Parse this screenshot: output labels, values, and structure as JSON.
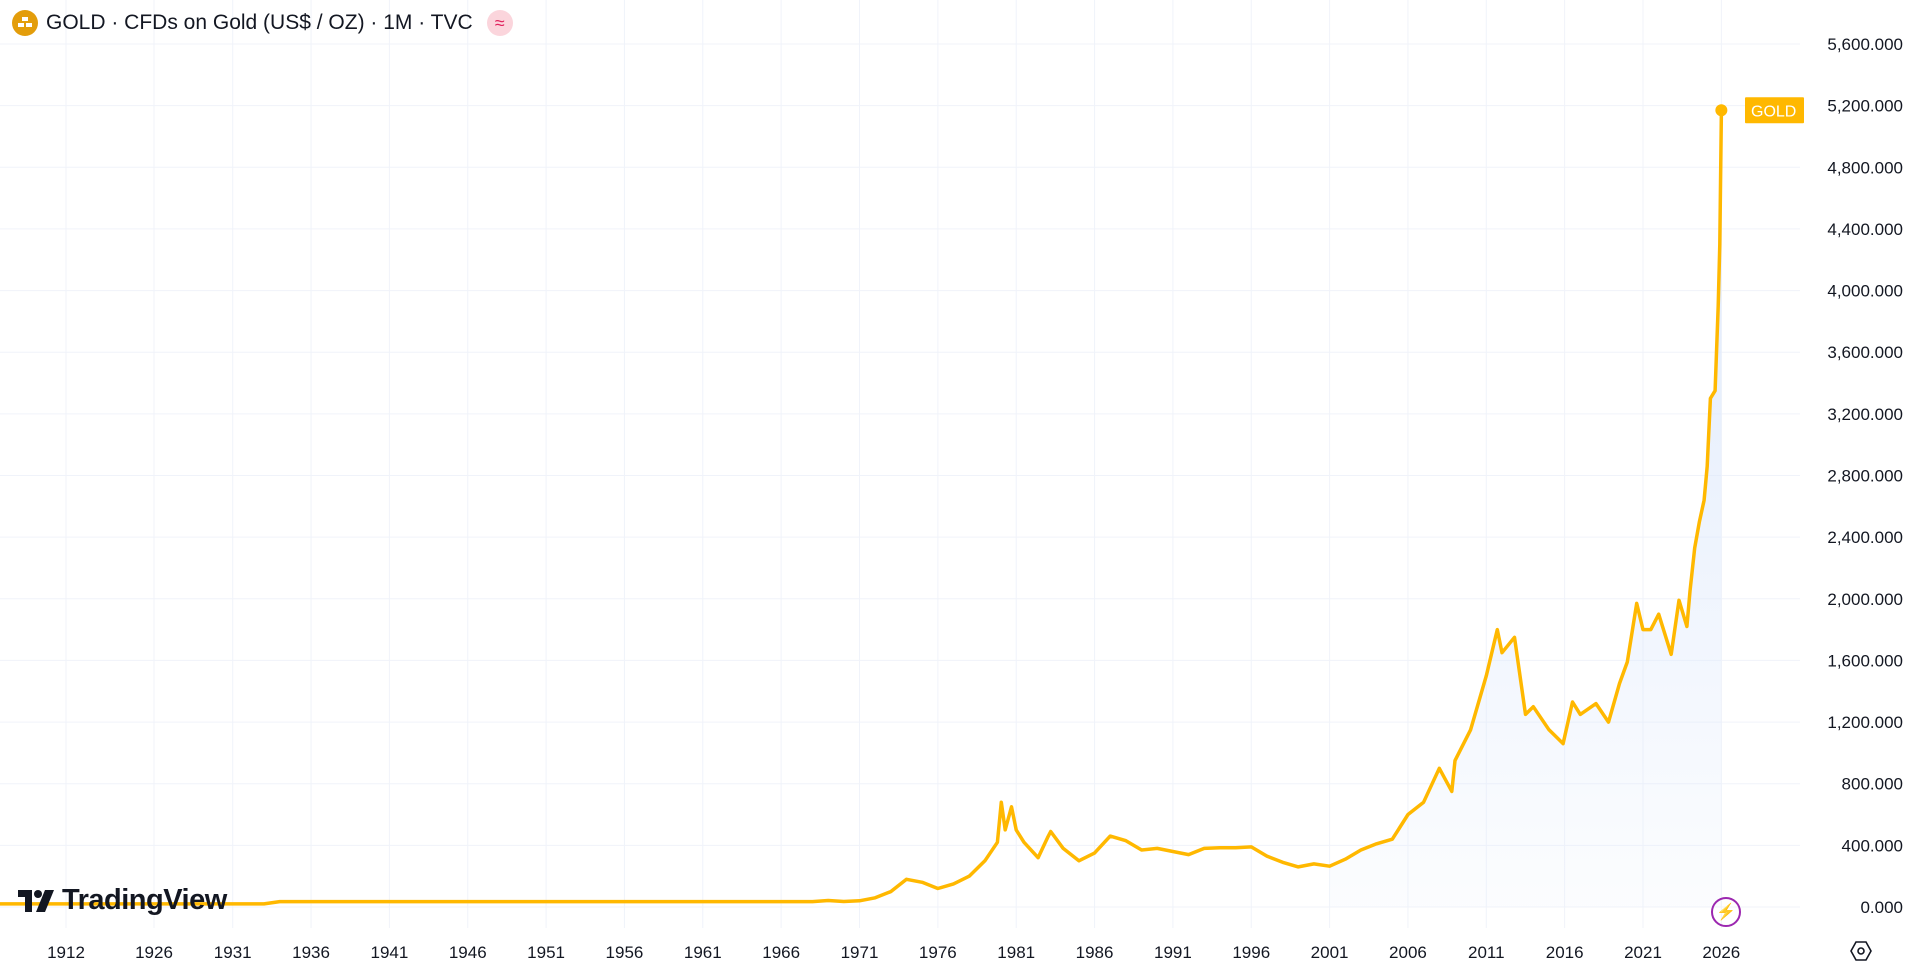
{
  "header": {
    "symbol": "GOLD",
    "description": "GOLD · CFDs on Gold (US$ / OZ) · 1M · TVC",
    "symbol_icon": "gold-bars-icon",
    "indicator_icon": "approx-wave-icon"
  },
  "branding": {
    "logo_text": "TradingView"
  },
  "colors": {
    "line": "#ffb800",
    "area_top": "#dbe7fb",
    "grid": "#f0f3fa",
    "label_bg": "#ffb800"
  },
  "controls": {
    "bolt_icon": "lightning-icon",
    "settings_icon": "settings-hexagon-icon"
  },
  "chart_data": {
    "type": "line",
    "title": "GOLD · CFDs on Gold (US$ / OZ) · 1M · TVC",
    "series": [
      {
        "name": "GOLD",
        "last_label": "GOLD",
        "points": [
          [
            1912,
            20
          ],
          [
            1933,
            20
          ],
          [
            1934,
            35
          ],
          [
            1968,
            35
          ],
          [
            1969,
            42
          ],
          [
            1970,
            36
          ],
          [
            1971,
            40
          ],
          [
            1972,
            60
          ],
          [
            1973,
            100
          ],
          [
            1974,
            180
          ],
          [
            1975,
            160
          ],
          [
            1976,
            120
          ],
          [
            1977,
            150
          ],
          [
            1978,
            200
          ],
          [
            1979,
            300
          ],
          [
            1979.8,
            420
          ],
          [
            1980.05,
            680
          ],
          [
            1980.3,
            500
          ],
          [
            1980.7,
            650
          ],
          [
            1981,
            500
          ],
          [
            1981.5,
            420
          ],
          [
            1982.4,
            320
          ],
          [
            1983,
            450
          ],
          [
            1983.2,
            490
          ],
          [
            1984,
            380
          ],
          [
            1985,
            300
          ],
          [
            1986,
            350
          ],
          [
            1987,
            460
          ],
          [
            1988,
            430
          ],
          [
            1989,
            370
          ],
          [
            1990,
            380
          ],
          [
            1991,
            360
          ],
          [
            1992,
            340
          ],
          [
            1993,
            380
          ],
          [
            1994,
            385
          ],
          [
            1995,
            385
          ],
          [
            1996,
            390
          ],
          [
            1997,
            330
          ],
          [
            1998,
            290
          ],
          [
            1999,
            260
          ],
          [
            2000,
            280
          ],
          [
            2001,
            265
          ],
          [
            2002,
            310
          ],
          [
            2003,
            370
          ],
          [
            2004,
            410
          ],
          [
            2005,
            440
          ],
          [
            2006,
            600
          ],
          [
            2007,
            680
          ],
          [
            2008,
            900
          ],
          [
            2008.8,
            750
          ],
          [
            2009,
            950
          ],
          [
            2010,
            1150
          ],
          [
            2011,
            1500
          ],
          [
            2011.7,
            1800
          ],
          [
            2012,
            1650
          ],
          [
            2012.8,
            1750
          ],
          [
            2013.5,
            1250
          ],
          [
            2014,
            1300
          ],
          [
            2015,
            1150
          ],
          [
            2015.9,
            1060
          ],
          [
            2016.5,
            1330
          ],
          [
            2017,
            1250
          ],
          [
            2018,
            1320
          ],
          [
            2018.8,
            1200
          ],
          [
            2019.5,
            1450
          ],
          [
            2020,
            1590
          ],
          [
            2020.6,
            1970
          ],
          [
            2021,
            1800
          ],
          [
            2021.5,
            1800
          ],
          [
            2022,
            1900
          ],
          [
            2022.8,
            1640
          ],
          [
            2023.3,
            1990
          ],
          [
            2023.8,
            1820
          ],
          [
            2024,
            2050
          ],
          [
            2024.3,
            2330
          ],
          [
            2024.6,
            2500
          ],
          [
            2024.9,
            2640
          ],
          [
            2025.1,
            2860
          ],
          [
            2025.3,
            3300
          ],
          [
            2025.6,
            3350
          ],
          [
            2025.8,
            3900
          ],
          [
            2025.9,
            4300
          ],
          [
            2026.0,
            5170
          ]
        ]
      }
    ],
    "x_ticks": [
      "1912",
      "1926",
      "1931",
      "1936",
      "1941",
      "1946",
      "1951",
      "1956",
      "1961",
      "1966",
      "1971",
      "1976",
      "1981",
      "1986",
      "1991",
      "1996",
      "2001",
      "2006",
      "2011",
      "2016",
      "2021",
      "2026"
    ],
    "y_ticks": [
      "0.000",
      "400.000",
      "800.000",
      "1,200.000",
      "1,600.000",
      "2,000.000",
      "2,400.000",
      "2,800.000",
      "3,200.000",
      "3,600.000",
      "4,000.000",
      "4,400.000",
      "4,800.000",
      "5,200.000",
      "5,600.000"
    ],
    "ylim": [
      0,
      5600
    ],
    "grid": true,
    "area_fill": true
  }
}
